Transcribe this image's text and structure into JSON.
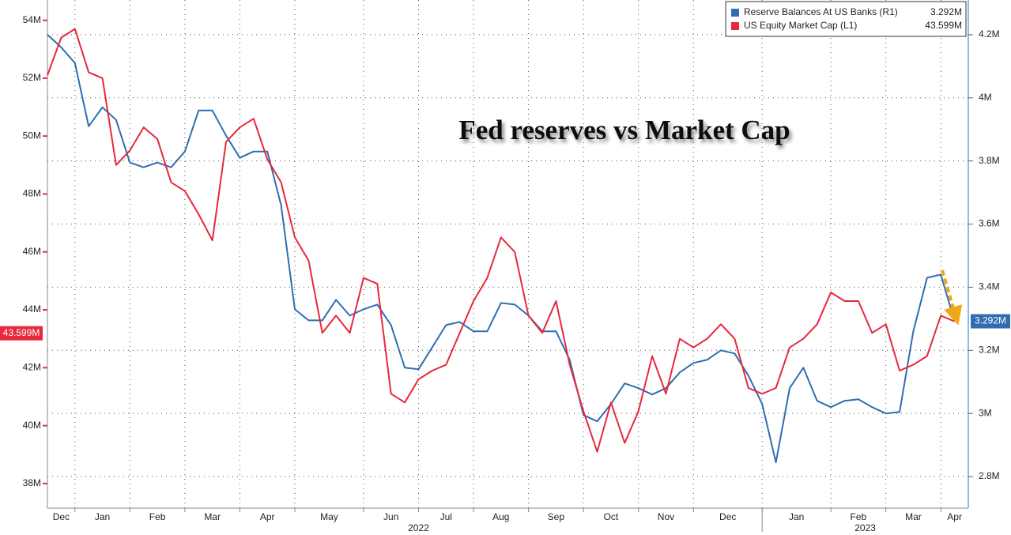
{
  "chart_data": {
    "type": "line",
    "title": "Fed reserves vs Market Cap",
    "categories": [
      "Dec",
      null,
      "Jan",
      null,
      null,
      null,
      "Feb",
      null,
      null,
      null,
      "Mar",
      null,
      null,
      null,
      "Apr",
      null,
      null,
      null,
      "May",
      null,
      null,
      null,
      null,
      "Jun",
      null,
      null,
      null,
      "Jul",
      null,
      null,
      null,
      "Aug",
      null,
      null,
      null,
      "Sep",
      null,
      null,
      null,
      "Oct",
      null,
      null,
      null,
      "Nov",
      null,
      null,
      null,
      "Dec",
      null,
      null,
      null,
      null,
      "Jan",
      null,
      null,
      null,
      null,
      "Feb",
      null,
      null,
      null,
      "Mar",
      null,
      null,
      null,
      "Apr",
      null,
      null
    ],
    "year_labels": [
      "2022",
      "2023"
    ],
    "series": [
      {
        "name": "Reserve Balances At US Banks (R1)",
        "color": "#2f6db3",
        "axis": "y2",
        "last_value_label": "3.292M",
        "values": [
          4.2,
          4.16,
          4.11,
          3.91,
          3.97,
          3.93,
          3.795,
          3.78,
          3.795,
          3.78,
          3.83,
          3.96,
          3.96,
          3.88,
          3.81,
          3.83,
          3.83,
          3.66,
          3.33,
          3.295,
          3.295,
          3.36,
          3.31,
          3.33,
          3.345,
          3.28,
          3.145,
          3.14,
          3.21,
          3.28,
          3.29,
          3.26,
          3.26,
          3.35,
          3.345,
          3.31,
          3.26,
          3.26,
          3.17,
          2.995,
          2.975,
          3.03,
          3.095,
          3.08,
          3.06,
          3.08,
          3.13,
          3.16,
          3.17,
          3.2,
          3.19,
          3.12,
          3.03,
          2.845,
          3.08,
          3.145,
          3.04,
          3.02,
          3.04,
          3.045,
          3.02,
          3.0,
          3.005,
          3.26,
          3.43,
          3.44,
          3.292,
          null
        ]
      },
      {
        "name": "US Equity Market Cap (L1)",
        "color": "#e8283c",
        "last_value_label": "43.599M",
        "values": [
          52.1,
          53.4,
          53.7,
          52.2,
          52.0,
          49.0,
          49.5,
          50.3,
          49.9,
          48.4,
          48.1,
          47.3,
          46.4,
          49.8,
          50.3,
          50.6,
          49.2,
          48.4,
          46.5,
          45.7,
          43.2,
          43.8,
          43.2,
          45.1,
          44.9,
          41.1,
          40.8,
          41.6,
          41.9,
          42.1,
          43.2,
          44.3,
          45.1,
          46.5,
          46.0,
          43.8,
          43.2,
          44.3,
          42.1,
          40.5,
          39.1,
          40.8,
          39.4,
          40.5,
          42.4,
          41.1,
          43.0,
          42.7,
          43.0,
          43.5,
          43.0,
          41.3,
          41.1,
          41.3,
          42.7,
          43.0,
          43.5,
          44.6,
          44.3,
          44.3,
          43.2,
          43.5,
          41.9,
          42.1,
          42.4,
          43.8,
          43.599,
          null
        ]
      }
    ],
    "ylim": [
      37.15,
      54.7
    ],
    "yticks": [
      {
        "value": 38,
        "label": "38M"
      },
      {
        "value": 40,
        "label": "40M"
      },
      {
        "value": 42,
        "label": "42M"
      },
      {
        "value": 44,
        "label": "44M"
      },
      {
        "value": 46,
        "label": "46M"
      },
      {
        "value": 48,
        "label": "48M"
      },
      {
        "value": 50,
        "label": "50M"
      },
      {
        "value": 52,
        "label": "52M"
      },
      {
        "value": 54,
        "label": "54M"
      }
    ],
    "y2lim": [
      2.7,
      4.31
    ],
    "y2ticks": [
      {
        "value": 2.8,
        "label": "2.8M"
      },
      {
        "value": 3,
        "label": "3M"
      },
      {
        "value": 3.2,
        "label": "3.2M"
      },
      {
        "value": 3.4,
        "label": "3.4M"
      },
      {
        "value": 3.6,
        "label": "3.6M"
      },
      {
        "value": 3.8,
        "label": "3.8M"
      },
      {
        "value": 4,
        "label": "4M"
      },
      {
        "value": 4.2,
        "label": "4.2M"
      }
    ],
    "grid": true
  }
}
